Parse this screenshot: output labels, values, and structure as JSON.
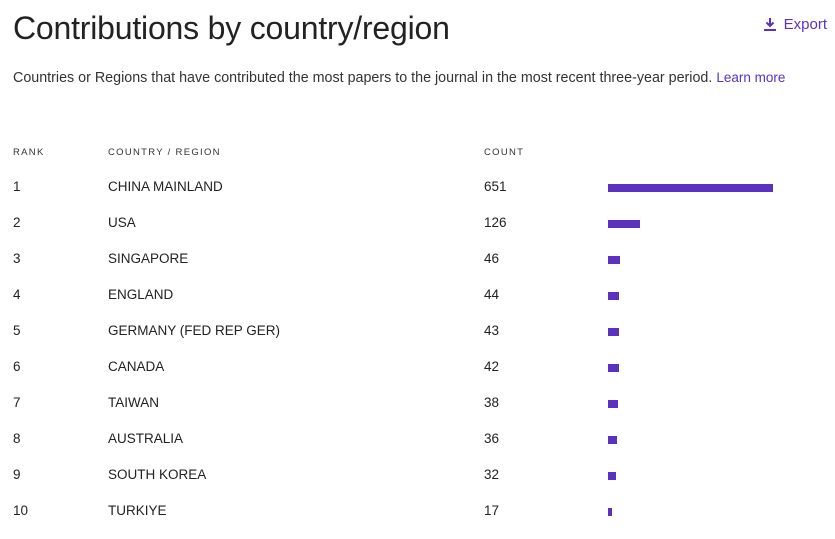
{
  "header": {
    "title": "Contributions by country/region",
    "export": "Export"
  },
  "description": {
    "text": "Countries or Regions that have contributed the most papers to the journal in the most recent three-year period.",
    "link": "Learn more"
  },
  "table": {
    "columns": [
      "RANK",
      "COUNTRY / REGION",
      "COUNT"
    ],
    "bar_color": "#5b32c0",
    "rows": [
      [
        1,
        "CHINA MAINLAND",
        651
      ],
      [
        2,
        "USA",
        126
      ],
      [
        3,
        "SINGAPORE",
        46
      ],
      [
        4,
        "ENGLAND",
        44
      ],
      [
        5,
        "GERMANY (FED REP GER)",
        43
      ],
      [
        6,
        "CANADA",
        42
      ],
      [
        7,
        "TAIWAN",
        38
      ],
      [
        8,
        "AUSTRALIA",
        36
      ],
      [
        9,
        "SOUTH KOREA",
        32
      ],
      [
        10,
        "TURKIYE",
        17
      ]
    ]
  }
}
